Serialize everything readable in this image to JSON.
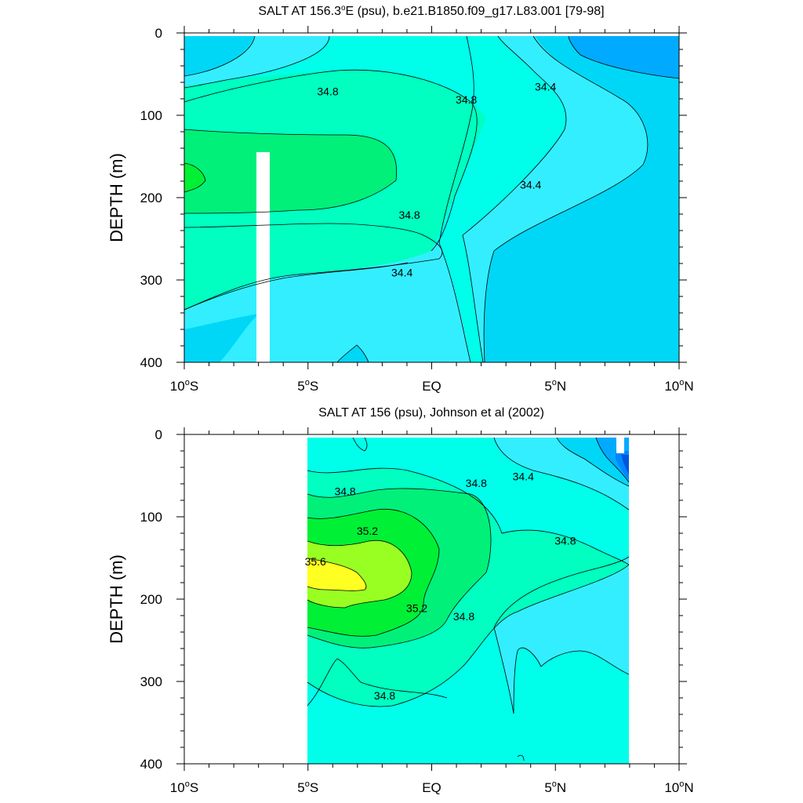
{
  "figure": {
    "colors": {
      "s34_0": "#00aaff",
      "s34_2": "#00d7f7",
      "s34_4": "#33eeff",
      "s34_6": "#00ffea",
      "s34_8": "#00ffc0",
      "s35_0": "#00f07a",
      "s35_2": "#00f035",
      "s35_4": "#99ff22",
      "s35_6": "#ffff22",
      "missing": "#ffffff",
      "s33_8": "#0088ff",
      "s33_6": "#0055dd"
    }
  },
  "chart_data": [
    {
      "type": "contour",
      "title": "SALT AT 156.3°E (psu), b.e21.B1850.f09_g17.L83.001 [79-98]",
      "title_main": "SALT AT 156.3",
      "title_degree": "o",
      "title_rest": "E (psu), b.e21.B1850.f09_g17.L83.001 [79-98]",
      "ylabel": "DEPTH (m)",
      "xlim": [
        -10,
        10
      ],
      "ylim": [
        400,
        0
      ],
      "x_ticks": [
        {
          "value": -10,
          "num": "10",
          "deg": "o",
          "hemi": "S"
        },
        {
          "value": -5,
          "num": "5",
          "deg": "o",
          "hemi": "S"
        },
        {
          "value": 0,
          "num": "EQ",
          "deg": "",
          "hemi": ""
        },
        {
          "value": 5,
          "num": "5",
          "deg": "o",
          "hemi": "N"
        },
        {
          "value": 10,
          "num": "10",
          "deg": "o",
          "hemi": "N"
        }
      ],
      "y_ticks": [
        0,
        100,
        200,
        300,
        400
      ],
      "contour_labels": [
        {
          "text": "34.8",
          "lon": -4.2,
          "depth": 72
        },
        {
          "text": "34.8",
          "lon": 1.4,
          "depth": 82
        },
        {
          "text": "34.4",
          "lon": 4.6,
          "depth": 66
        },
        {
          "text": "34.4",
          "lon": 4.0,
          "depth": 185
        },
        {
          "text": "34.8",
          "lon": -0.9,
          "depth": 222
        },
        {
          "text": "34.4",
          "lon": -1.2,
          "depth": 292
        }
      ]
    },
    {
      "type": "contour",
      "title": "SALT AT 156 (psu), Johnson et al (2002)",
      "ylabel": "DEPTH (m)",
      "xlim": [
        -10,
        10
      ],
      "ylim": [
        400,
        0
      ],
      "data_xrange": [
        -5,
        8
      ],
      "x_ticks": [
        {
          "value": -10,
          "num": "10",
          "deg": "o",
          "hemi": "S"
        },
        {
          "value": -5,
          "num": "5",
          "deg": "o",
          "hemi": "S"
        },
        {
          "value": 0,
          "num": "EQ",
          "deg": "",
          "hemi": ""
        },
        {
          "value": 5,
          "num": "5",
          "deg": "o",
          "hemi": "N"
        },
        {
          "value": 10,
          "num": "10",
          "deg": "o",
          "hemi": "N"
        }
      ],
      "y_ticks": [
        0,
        100,
        200,
        300,
        400
      ],
      "contour_labels": [
        {
          "text": "34.8",
          "lon": -3.5,
          "depth": 70
        },
        {
          "text": "34.8",
          "lon": 1.8,
          "depth": 60
        },
        {
          "text": "34.4",
          "lon": 3.7,
          "depth": 52
        },
        {
          "text": "35.2",
          "lon": -2.6,
          "depth": 118
        },
        {
          "text": "35.6",
          "lon": -4.7,
          "depth": 155
        },
        {
          "text": "35.2",
          "lon": -0.6,
          "depth": 212
        },
        {
          "text": "34.8",
          "lon": 1.3,
          "depth": 222
        },
        {
          "text": "34.8",
          "lon": 5.4,
          "depth": 130
        },
        {
          "text": "34.8",
          "lon": -1.9,
          "depth": 318
        }
      ]
    }
  ]
}
